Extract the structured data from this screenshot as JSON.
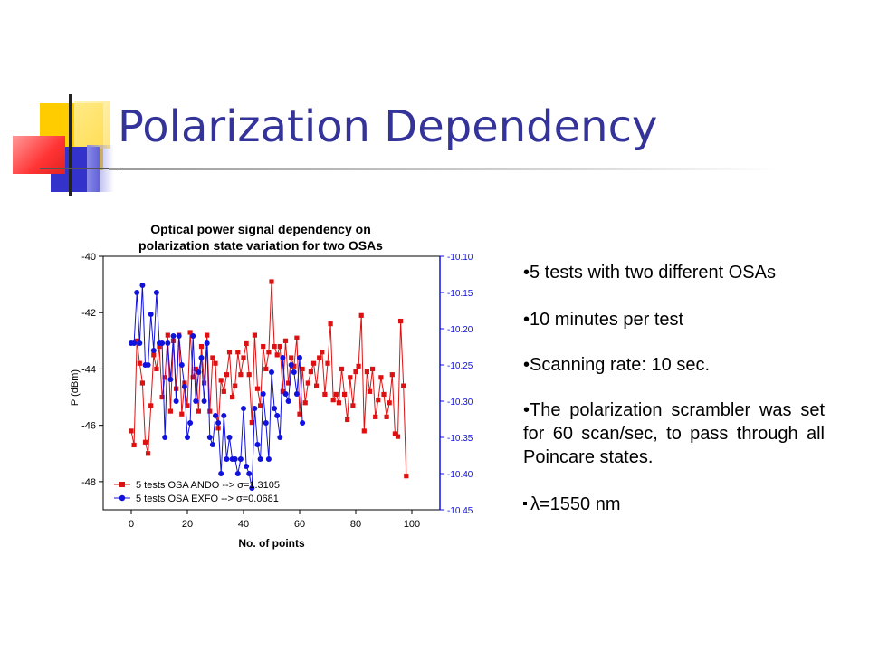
{
  "slide": {
    "title": "Polarization Dependency",
    "bullets": [
      "•5 tests with two different OSAs",
      "•10 minutes per test",
      "•Scanning rate: 10 sec.",
      "•The polarization scrambler was set for 60 scan/sec, to pass through all Poincare states.",
      "λ=1550 nm"
    ],
    "colors": {
      "title": "#333399",
      "deco_yellow": "#ffcc00",
      "deco_blue": "#3333cc",
      "deco_red": "#ff3333"
    }
  },
  "chart_data": {
    "type": "scatter",
    "title_lines": [
      "Optical power signal dependency on",
      "polarization state variation for two OSAs"
    ],
    "xlabel": "No. of points",
    "ylabel_left": "P (dBm)",
    "xlim": [
      -10,
      110
    ],
    "ylim_left": [
      -49,
      -40
    ],
    "ylim_right": [
      -10.45,
      -10.1
    ],
    "x_ticks": [
      "0",
      "20",
      "40",
      "60",
      "80",
      "100"
    ],
    "y_ticks_left": [
      "-40",
      "-42",
      "-44",
      "-46",
      "-48"
    ],
    "y_ticks_right": [
      "-10.10",
      "-10.15",
      "-10.20",
      "-10.25",
      "-10.30",
      "-10.35",
      "-10.40",
      "-10.45"
    ],
    "legend_placement": "bottom-left",
    "series": [
      {
        "name": "5 tests OSA ANDO --> σ=1.3105",
        "axis": "left",
        "color": "#dd1111",
        "marker": "square",
        "x": [
          0,
          1,
          2,
          3,
          4,
          5,
          6,
          7,
          8,
          9,
          10,
          11,
          12,
          13,
          14,
          15,
          16,
          17,
          18,
          19,
          20,
          21,
          22,
          23,
          24,
          25,
          26,
          27,
          28,
          29,
          30,
          31,
          32,
          33,
          34,
          35,
          36,
          37,
          38,
          39,
          40,
          41,
          42,
          43,
          44,
          45,
          46,
          47,
          48,
          49,
          50,
          51,
          52,
          53,
          54,
          55,
          56,
          57,
          58,
          59,
          60,
          61,
          62,
          63,
          64,
          65,
          66,
          67,
          68,
          69,
          70,
          71,
          72,
          73,
          74,
          75,
          76,
          77,
          78,
          79,
          80,
          81,
          82,
          83,
          84,
          85,
          86,
          87,
          88,
          89,
          90,
          91,
          92,
          93,
          94,
          95,
          96,
          97,
          98
        ],
        "y": [
          -46.2,
          -46.7,
          -43.0,
          -43.8,
          -44.5,
          -46.6,
          -47.0,
          -45.3,
          -43.5,
          -44.0,
          -43.2,
          -45.0,
          -44.3,
          -42.8,
          -45.5,
          -43.0,
          -44.7,
          -42.8,
          -45.6,
          -44.5,
          -45.3,
          -42.7,
          -44.3,
          -44.0,
          -45.5,
          -43.2,
          -44.5,
          -42.8,
          -45.5,
          -43.6,
          -43.8,
          -46.1,
          -44.4,
          -44.8,
          -44.2,
          -43.4,
          -45.0,
          -44.6,
          -43.4,
          -44.2,
          -43.6,
          -43.1,
          -44.2,
          -45.9,
          -42.8,
          -44.7,
          -45.3,
          -43.2,
          -44.0,
          -43.4,
          -40.9,
          -43.2,
          -43.5,
          -43.2,
          -44.8,
          -43.0,
          -44.5,
          -43.6,
          -43.9,
          -42.9,
          -45.6,
          -44.0,
          -45.2,
          -44.5,
          -44.1,
          -43.8,
          -44.6,
          -43.6,
          -43.4,
          -44.9,
          -43.8,
          -42.4,
          -45.1,
          -44.9,
          -45.2,
          -44.0,
          -44.9,
          -45.8,
          -44.3,
          -45.3,
          -44.1,
          -43.9,
          -42.1,
          -46.2,
          -44.1,
          -44.8,
          -44.0,
          -45.7,
          -45.1,
          -44.3,
          -44.9,
          -45.7,
          -45.2,
          -44.2,
          -46.3,
          -46.4,
          -42.3,
          -44.6,
          -47.8
        ],
        "y_axis_unit": "dBm"
      },
      {
        "name": "5 tests OSA EXFO --> σ=0.0681",
        "axis": "right",
        "color": "#1111dd",
        "marker": "circle",
        "x": [
          0,
          1,
          2,
          3,
          4,
          5,
          6,
          7,
          8,
          9,
          10,
          11,
          12,
          13,
          14,
          15,
          16,
          17,
          18,
          19,
          20,
          21,
          22,
          23,
          24,
          25,
          26,
          27,
          28,
          29,
          30,
          31,
          32,
          33,
          34,
          35,
          36,
          37,
          38,
          39,
          40,
          41,
          42,
          43,
          44,
          45,
          46,
          47,
          48,
          49,
          50,
          51,
          52,
          53,
          54,
          55,
          56,
          57,
          58,
          59,
          60,
          61
        ],
        "y": [
          -10.22,
          -10.22,
          -10.15,
          -10.22,
          -10.14,
          -10.25,
          -10.25,
          -10.18,
          -10.23,
          -10.15,
          -10.22,
          -10.22,
          -10.35,
          -10.22,
          -10.27,
          -10.21,
          -10.3,
          -10.21,
          -10.25,
          -10.28,
          -10.35,
          -10.33,
          -10.21,
          -10.3,
          -10.26,
          -10.24,
          -10.3,
          -10.22,
          -10.35,
          -10.36,
          -10.32,
          -10.33,
          -10.4,
          -10.32,
          -10.38,
          -10.35,
          -10.38,
          -10.38,
          -10.4,
          -10.38,
          -10.31,
          -10.39,
          -10.4,
          -10.42,
          -10.31,
          -10.36,
          -10.38,
          -10.29,
          -10.33,
          -10.38,
          -10.26,
          -10.31,
          -10.32,
          -10.35,
          -10.24,
          -10.29,
          -10.3,
          -10.25,
          -10.26,
          -10.29,
          -10.24,
          -10.33
        ]
      }
    ]
  }
}
